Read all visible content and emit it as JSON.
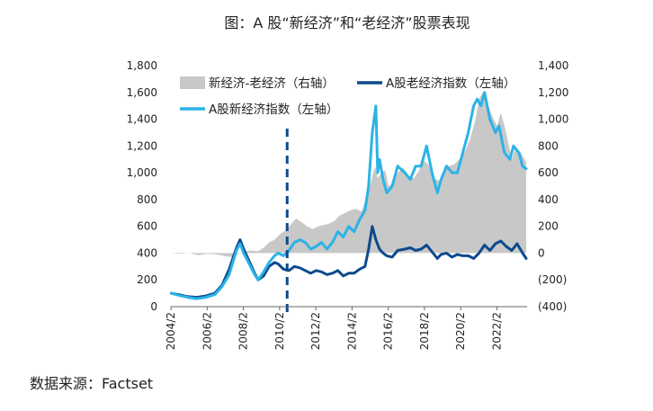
{
  "chart_data": {
    "type": "line",
    "title": "图：A 股“新经济”和“老经济”股票表现",
    "x_ticks": [
      "2004/2",
      "2006/2",
      "2008/2",
      "2010/2",
      "2012/2",
      "2014/2",
      "2016/2",
      "2018/2",
      "2020/2",
      "2022/2"
    ],
    "xlim": [
      2004.08,
      2023.75
    ],
    "left_axis": {
      "ylim": [
        0,
        1800
      ],
      "ticks": [
        "0",
        "200",
        "400",
        "600",
        "800",
        "1,000",
        "1,200",
        "1,400",
        "1,600",
        "1,800"
      ],
      "tick_values": [
        0,
        200,
        400,
        600,
        800,
        1000,
        1200,
        1400,
        1600,
        1800
      ]
    },
    "right_axis": {
      "ylim": [
        -400,
        1400
      ],
      "ticks": [
        "(400)",
        "(200)",
        "0",
        "200",
        "400",
        "600",
        "800",
        "1,000",
        "1,200",
        "1,400"
      ],
      "tick_values": [
        -400,
        -200,
        0,
        200,
        400,
        600,
        800,
        1000,
        1200,
        1400
      ]
    },
    "marker_line_x": 2010.5,
    "series": [
      {
        "name": "新经济-老经济（右轴）",
        "type": "area",
        "axis": "right",
        "color": "#c8c8c8",
        "x": [
          2004.1,
          2004.6,
          2005.1,
          2005.6,
          2006.1,
          2006.6,
          2007.0,
          2007.4,
          2007.8,
          2008.1,
          2008.5,
          2008.9,
          2009.2,
          2009.5,
          2009.8,
          2010.1,
          2010.5,
          2010.8,
          2011.0,
          2011.3,
          2011.6,
          2011.9,
          2012.2,
          2012.5,
          2012.8,
          2013.1,
          2013.4,
          2013.7,
          2014.0,
          2014.3,
          2014.6,
          2014.9,
          2015.1,
          2015.35,
          2015.5,
          2015.7,
          2015.9,
          2016.1,
          2016.3,
          2016.6,
          2016.9,
          2017.2,
          2017.5,
          2017.8,
          2018.0,
          2018.3,
          2018.6,
          2018.9,
          2019.1,
          2019.4,
          2019.7,
          2020.0,
          2020.3,
          2020.6,
          2020.9,
          2021.1,
          2021.3,
          2021.6,
          2021.9,
          2022.1,
          2022.3,
          2022.6,
          2022.9,
          2023.1,
          2023.4,
          2023.7
        ],
        "values": [
          0,
          -5,
          0,
          -15,
          -5,
          -10,
          -20,
          -30,
          -5,
          10,
          20,
          15,
          40,
          80,
          100,
          140,
          180,
          230,
          260,
          230,
          200,
          180,
          200,
          210,
          220,
          240,
          280,
          300,
          320,
          330,
          310,
          420,
          520,
          650,
          560,
          600,
          620,
          500,
          520,
          600,
          640,
          580,
          560,
          620,
          700,
          660,
          560,
          540,
          600,
          650,
          660,
          700,
          750,
          850,
          1000,
          1150,
          1200,
          1100,
          1000,
          950,
          1050,
          900,
          700,
          780,
          750,
          680
        ]
      },
      {
        "name": "A股老经济指数（左轴）",
        "type": "line",
        "axis": "left",
        "color": "#0c4a8c",
        "x": [
          2004.1,
          2004.5,
          2005.0,
          2005.5,
          2006.0,
          2006.5,
          2006.9,
          2007.3,
          2007.7,
          2007.9,
          2008.1,
          2008.4,
          2008.7,
          2008.9,
          2009.2,
          2009.5,
          2009.8,
          2010.0,
          2010.3,
          2010.6,
          2010.9,
          2011.2,
          2011.5,
          2011.8,
          2012.1,
          2012.4,
          2012.7,
          2013.0,
          2013.3,
          2013.6,
          2013.9,
          2014.2,
          2014.5,
          2014.8,
          2015.0,
          2015.2,
          2015.4,
          2015.6,
          2015.8,
          2016.0,
          2016.3,
          2016.6,
          2017.0,
          2017.3,
          2017.6,
          2017.9,
          2018.2,
          2018.5,
          2018.8,
          2019.0,
          2019.3,
          2019.6,
          2019.9,
          2020.2,
          2020.5,
          2020.8,
          2021.1,
          2021.4,
          2021.7,
          2022.0,
          2022.3,
          2022.6,
          2022.9,
          2023.2,
          2023.5,
          2023.7
        ],
        "values": [
          100,
          90,
          75,
          70,
          80,
          100,
          160,
          280,
          440,
          500,
          430,
          340,
          250,
          200,
          230,
          300,
          330,
          320,
          280,
          270,
          300,
          290,
          270,
          250,
          270,
          260,
          240,
          250,
          270,
          230,
          250,
          250,
          280,
          300,
          430,
          600,
          500,
          430,
          400,
          380,
          370,
          420,
          430,
          440,
          420,
          430,
          460,
          410,
          360,
          390,
          400,
          370,
          390,
          380,
          380,
          360,
          400,
          460,
          420,
          470,
          490,
          450,
          420,
          470,
          400,
          360
        ]
      },
      {
        "name": "A股新经济指数（左轴）",
        "type": "line",
        "axis": "left",
        "color": "#2bb3e6",
        "x": [
          2004.1,
          2004.5,
          2005.0,
          2005.5,
          2006.0,
          2006.5,
          2006.9,
          2007.3,
          2007.7,
          2007.9,
          2008.1,
          2008.4,
          2008.7,
          2008.9,
          2009.2,
          2009.5,
          2009.8,
          2010.0,
          2010.3,
          2010.6,
          2010.9,
          2011.2,
          2011.5,
          2011.8,
          2012.1,
          2012.4,
          2012.7,
          2013.0,
          2013.3,
          2013.6,
          2013.9,
          2014.2,
          2014.5,
          2014.8,
          2015.0,
          2015.2,
          2015.4,
          2015.5,
          2015.6,
          2015.8,
          2016.0,
          2016.3,
          2016.6,
          2017.0,
          2017.3,
          2017.6,
          2017.9,
          2018.2,
          2018.5,
          2018.8,
          2019.0,
          2019.3,
          2019.6,
          2019.9,
          2020.2,
          2020.5,
          2020.8,
          2021.0,
          2021.2,
          2021.4,
          2021.7,
          2022.0,
          2022.2,
          2022.5,
          2022.8,
          2023.0,
          2023.3,
          2023.5,
          2023.7
        ],
        "values": [
          100,
          85,
          70,
          60,
          70,
          90,
          150,
          240,
          420,
          470,
          400,
          320,
          240,
          200,
          260,
          330,
          380,
          400,
          380,
          420,
          480,
          500,
          480,
          430,
          450,
          480,
          430,
          480,
          560,
          520,
          600,
          560,
          650,
          720,
          900,
          1300,
          1500,
          1000,
          1100,
          950,
          850,
          900,
          1050,
          1000,
          950,
          1050,
          1050,
          1200,
          1000,
          850,
          950,
          1050,
          1000,
          1000,
          1150,
          1300,
          1500,
          1550,
          1500,
          1600,
          1400,
          1300,
          1350,
          1150,
          1100,
          1200,
          1150,
          1050,
          1030
        ]
      }
    ],
    "legend": [
      {
        "label": "新经济-老经济（右轴）",
        "kind": "area",
        "color": "#c8c8c8"
      },
      {
        "label": "A股老经济指数（左轴）",
        "kind": "line",
        "color": "#0c4a8c"
      },
      {
        "label": "A股新经济指数（左轴）",
        "kind": "line",
        "color": "#2bb3e6"
      }
    ]
  },
  "source_text": "数据来源：Factset"
}
